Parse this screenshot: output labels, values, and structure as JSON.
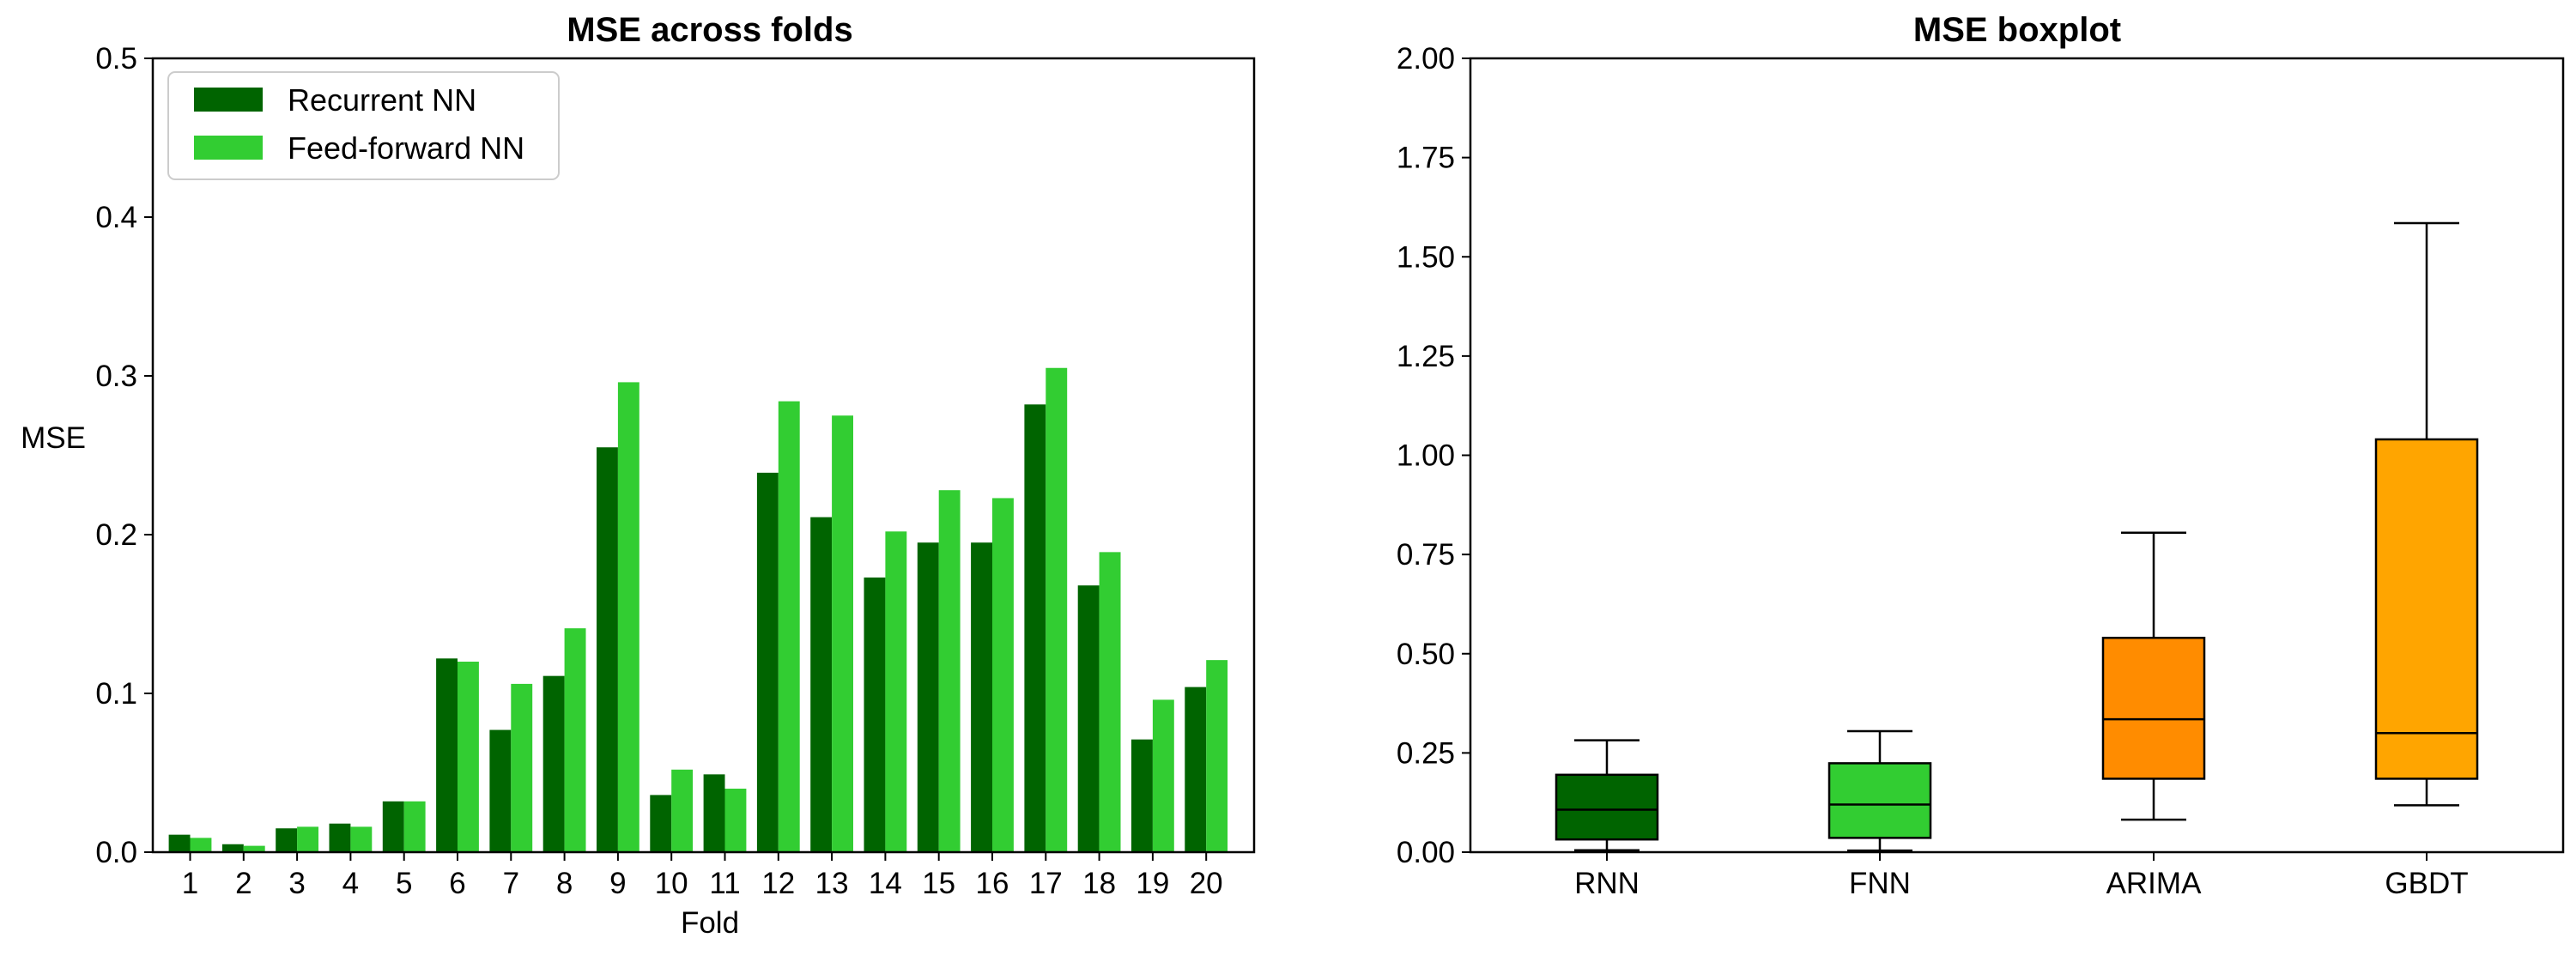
{
  "chart_data": [
    {
      "type": "bar",
      "title": "MSE across folds",
      "xlabel": "Fold",
      "ylabel": "MSE",
      "ylim": [
        0,
        0.5
      ],
      "yticks": [
        "0.0",
        "0.1",
        "0.2",
        "0.3",
        "0.4",
        "0.5"
      ],
      "categories": [
        "1",
        "2",
        "3",
        "4",
        "5",
        "6",
        "7",
        "8",
        "9",
        "10",
        "11",
        "12",
        "13",
        "14",
        "15",
        "16",
        "17",
        "18",
        "19",
        "20"
      ],
      "legend_position": "top-left",
      "series": [
        {
          "name": "Recurrent NN",
          "color": "#006400",
          "values": [
            0.011,
            0.005,
            0.015,
            0.018,
            0.032,
            0.122,
            0.077,
            0.111,
            0.255,
            0.036,
            0.049,
            0.239,
            0.211,
            0.173,
            0.195,
            0.195,
            0.282,
            0.168,
            0.071,
            0.104
          ]
        },
        {
          "name": "Feed-forward NN",
          "color": "#32CD32",
          "values": [
            0.009,
            0.004,
            0.016,
            0.016,
            0.032,
            0.12,
            0.106,
            0.141,
            0.296,
            0.052,
            0.04,
            0.284,
            0.275,
            0.202,
            0.228,
            0.223,
            0.305,
            0.189,
            0.096,
            0.121
          ]
        }
      ]
    },
    {
      "type": "boxplot",
      "title": "MSE boxplot",
      "xlabel": "",
      "ylabel": "",
      "ylim": [
        0,
        2.0
      ],
      "yticks": [
        "0.00",
        "0.25",
        "0.50",
        "0.75",
        "1.00",
        "1.25",
        "1.50",
        "1.75",
        "2.00"
      ],
      "categories": [
        "RNN",
        "FNN",
        "ARIMA",
        "GBDT"
      ],
      "boxes": [
        {
          "label": "RNN",
          "color": "#006400",
          "whisker_low": 0.005,
          "q1": 0.032,
          "median": 0.107,
          "q3": 0.195,
          "whisker_high": 0.282
        },
        {
          "label": "FNN",
          "color": "#32CD32",
          "whisker_low": 0.004,
          "q1": 0.036,
          "median": 0.12,
          "q3": 0.224,
          "whisker_high": 0.305
        },
        {
          "label": "ARIMA",
          "color": "#FF8C00",
          "whisker_low": 0.082,
          "q1": 0.185,
          "median": 0.335,
          "q3": 0.54,
          "whisker_high": 0.805
        },
        {
          "label": "GBDT",
          "color": "#FFA500",
          "whisker_low": 0.118,
          "q1": 0.185,
          "median": 0.3,
          "q3": 1.04,
          "whisker_high": 1.585
        }
      ]
    }
  ]
}
